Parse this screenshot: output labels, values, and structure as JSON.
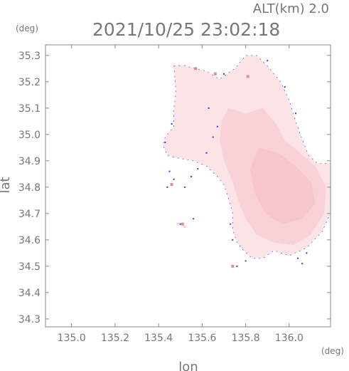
{
  "header": {
    "altitude": "ALT(km)  2.0",
    "timestamp": "2021/10/25 23:02:18"
  },
  "chart_data": {
    "type": "heatmap",
    "title": "2021/10/25 23:02:18",
    "subtitle": "ALT(km)  2.0",
    "xlabel": "lon",
    "ylabel": "lat",
    "x_unit": "(deg)",
    "y_unit": "(deg)",
    "xlim": [
      134.88,
      136.19
    ],
    "ylim": [
      34.27,
      35.34
    ],
    "x_ticks": [
      135.0,
      135.2,
      135.4,
      135.6,
      135.8,
      136.0
    ],
    "x_tick_labels": [
      "135.0",
      "135.2",
      "135.4",
      "135.6",
      "135.8",
      "136.0"
    ],
    "y_ticks": [
      34.3,
      34.4,
      34.5,
      34.6,
      34.7,
      34.8,
      34.9,
      35.0,
      35.1,
      35.2,
      35.3
    ],
    "y_tick_labels": [
      "34.3",
      "34.4",
      "34.5",
      "34.6",
      "34.7",
      "34.8",
      "34.9",
      "35.0",
      "35.1",
      "35.2",
      "35.3"
    ],
    "grid": false,
    "colors": {
      "axis": "#888888",
      "field_light": "#fbe3e6",
      "field_main": "#f9d2d7",
      "field_dark": "#f6c6cc",
      "edge_blue": "#3333ff",
      "spot_red": "#e08c9a"
    },
    "regions": [
      {
        "name": "main-field",
        "level": "light",
        "polygon": [
          [
            135.47,
            35.26
          ],
          [
            135.52,
            35.26
          ],
          [
            135.57,
            35.25
          ],
          [
            135.62,
            35.24
          ],
          [
            135.68,
            35.21
          ],
          [
            135.75,
            35.25
          ],
          [
            135.8,
            35.3
          ],
          [
            135.85,
            35.3
          ],
          [
            135.9,
            35.26
          ],
          [
            135.96,
            35.2
          ],
          [
            136.0,
            35.13
          ],
          [
            136.03,
            35.05
          ],
          [
            136.06,
            34.98
          ],
          [
            136.09,
            34.92
          ],
          [
            136.13,
            34.89
          ],
          [
            136.19,
            34.89
          ],
          [
            136.19,
            34.7
          ],
          [
            136.15,
            34.63
          ],
          [
            136.08,
            34.57
          ],
          [
            136.0,
            34.54
          ],
          [
            135.93,
            34.56
          ],
          [
            135.88,
            34.53
          ],
          [
            135.83,
            34.53
          ],
          [
            135.79,
            34.56
          ],
          [
            135.76,
            34.59
          ],
          [
            135.74,
            34.64
          ],
          [
            135.74,
            34.7
          ],
          [
            135.72,
            34.76
          ],
          [
            135.7,
            34.81
          ],
          [
            135.67,
            34.84
          ],
          [
            135.62,
            34.88
          ],
          [
            135.56,
            34.9
          ],
          [
            135.49,
            34.91
          ],
          [
            135.44,
            34.92
          ],
          [
            135.42,
            34.96
          ],
          [
            135.43,
            34.99
          ],
          [
            135.47,
            35.03
          ],
          [
            135.47,
            35.1
          ],
          [
            135.48,
            35.16
          ]
        ]
      },
      {
        "name": "interior-field",
        "level": "main",
        "polygon": [
          [
            135.72,
            35.1
          ],
          [
            135.8,
            35.08
          ],
          [
            135.88,
            35.1
          ],
          [
            135.94,
            35.04
          ],
          [
            135.98,
            34.98
          ],
          [
            136.05,
            34.93
          ],
          [
            136.12,
            34.88
          ],
          [
            136.17,
            34.8
          ],
          [
            136.16,
            34.7
          ],
          [
            136.1,
            34.62
          ],
          [
            136.02,
            34.58
          ],
          [
            135.93,
            34.59
          ],
          [
            135.85,
            34.62
          ],
          [
            135.8,
            34.68
          ],
          [
            135.77,
            34.74
          ],
          [
            135.74,
            34.82
          ],
          [
            135.7,
            34.9
          ],
          [
            135.68,
            34.98
          ],
          [
            135.69,
            35.05
          ]
        ]
      },
      {
        "name": "core-field",
        "level": "dark",
        "polygon": [
          [
            135.86,
            34.95
          ],
          [
            135.95,
            34.93
          ],
          [
            136.03,
            34.88
          ],
          [
            136.1,
            34.82
          ],
          [
            136.12,
            34.74
          ],
          [
            136.06,
            34.68
          ],
          [
            135.97,
            34.66
          ],
          [
            135.89,
            34.7
          ],
          [
            135.84,
            34.78
          ],
          [
            135.82,
            34.87
          ]
        ]
      }
    ],
    "edge_marks": [
      [
        135.45,
        34.86
      ],
      [
        135.47,
        34.83
      ],
      [
        135.44,
        34.8
      ],
      [
        135.52,
        34.8
      ],
      [
        135.55,
        34.84
      ],
      [
        135.58,
        34.87
      ],
      [
        135.62,
        34.93
      ],
      [
        135.65,
        34.99
      ],
      [
        135.67,
        35.03
      ],
      [
        135.63,
        35.1
      ],
      [
        135.73,
        34.66
      ],
      [
        135.74,
        34.6
      ],
      [
        135.76,
        34.5
      ],
      [
        135.8,
        34.52
      ],
      [
        136.04,
        34.53
      ],
      [
        136.08,
        34.55
      ],
      [
        136.06,
        34.51
      ],
      [
        135.9,
        35.28
      ],
      [
        135.98,
        35.18
      ],
      [
        136.03,
        35.08
      ],
      [
        135.46,
        35.04
      ],
      [
        135.43,
        34.97
      ],
      [
        135.56,
        34.68
      ],
      [
        135.5,
        34.66
      ],
      [
        135.7,
        35.23
      ]
    ],
    "red_spots": [
      [
        135.57,
        35.25
      ],
      [
        135.66,
        35.23
      ],
      [
        135.81,
        35.22
      ],
      [
        135.46,
        34.81
      ],
      [
        135.51,
        34.66
      ],
      [
        135.74,
        34.5
      ]
    ],
    "islands": [
      [
        135.49,
        34.66
      ],
      [
        135.52,
        34.65
      ]
    ]
  }
}
